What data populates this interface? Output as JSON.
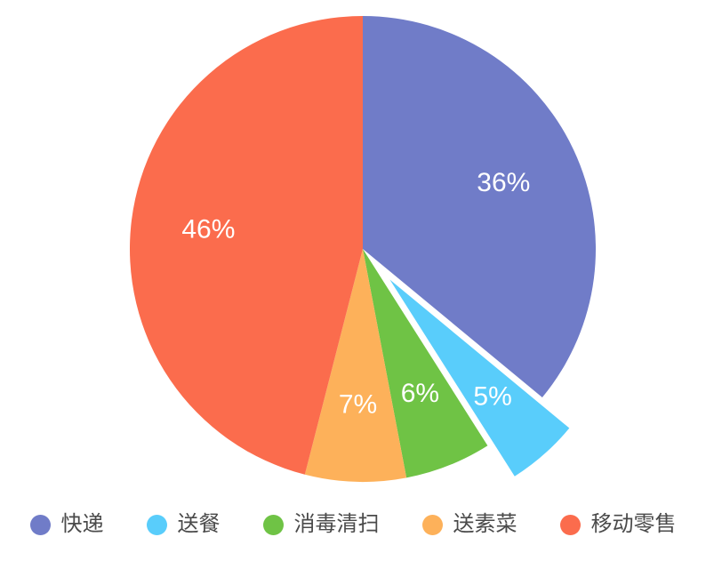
{
  "chart_data": {
    "type": "pie",
    "title": "",
    "background": "#FFFFFF",
    "direction": "clockwise",
    "start_angle_deg": 0,
    "legend_position": "bottom",
    "percent_label_color": "#FFFFFF",
    "legend_text_color": "#4A4A4A",
    "slices": [
      {
        "label": "快递",
        "value": 36,
        "percent_label": "36%",
        "color": "#707CC8",
        "exploded": false
      },
      {
        "label": "送餐",
        "value": 5,
        "percent_label": "5%",
        "color": "#59CDFB",
        "exploded": true
      },
      {
        "label": "消毒清扫",
        "value": 6,
        "percent_label": "6%",
        "color": "#6FC345",
        "exploded": false
      },
      {
        "label": "送素菜",
        "value": 7,
        "percent_label": "7%",
        "color": "#FDB15A",
        "exploded": false
      },
      {
        "label": "移动零售",
        "value": 46,
        "percent_label": "46%",
        "color": "#FB6C4D",
        "exploded": false
      }
    ]
  }
}
